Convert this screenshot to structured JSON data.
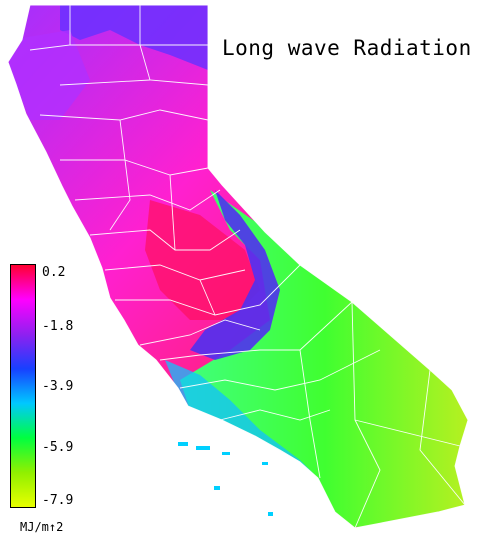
{
  "title": "Long wave Radiation",
  "legend": {
    "units": "MJ/m↑2",
    "ticks": [
      "0.2",
      "-1.8",
      "-3.9",
      "-5.9",
      "-7.9"
    ],
    "colors": [
      "#ff0030",
      "#ff00ff",
      "#9020f0",
      "#1840ff",
      "#00c8ff",
      "#00ff40",
      "#90f000",
      "#e8ff00"
    ]
  },
  "map": {
    "region": "California",
    "colors": {
      "high": "#ff2080",
      "mid": "#d000ff",
      "blue": "#6040ff",
      "cyan": "#00c8e0",
      "green": "#30ff30",
      "yellowgreen": "#a0ff20",
      "border": "#ffffff"
    }
  }
}
